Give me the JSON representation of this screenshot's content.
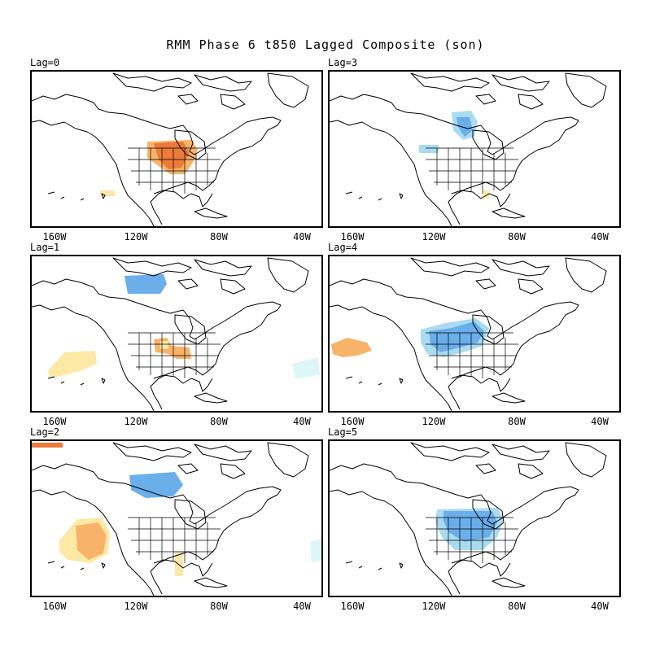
{
  "title": "RMM Phase 6 t850 Lagged Composite (son)",
  "colors": {
    "warm_light": "#fde9a6",
    "warm_mid": "#f7b469",
    "warm_strong": "#ec7a38",
    "cool_faint": "#dff6f8",
    "cool_light": "#a9dcf0",
    "cool_mid": "#6aaeea",
    "coast": "#000000",
    "borders": "#000000"
  },
  "longitude_ticks": [
    "160W",
    "120W",
    "80W",
    "40W"
  ],
  "panels": [
    {
      "label": "Lag=0",
      "anomaly": "warm",
      "region": "Central US / Great Plains"
    },
    {
      "label": "Lag=3",
      "anomaly": "cool",
      "region": "Northern Plains / Central Canada"
    },
    {
      "label": "Lag=1",
      "anomaly": "mixed",
      "region": "Central Canada (cool), Southern Plains (warm), NE Pacific (warm)"
    },
    {
      "label": "Lag=4",
      "anomaly": "mixed",
      "region": "Western & Central US (cool), NE Pacific (warm)"
    },
    {
      "label": "Lag=2",
      "anomaly": "mixed",
      "region": "Central Canada (cool), NE Pacific & Mexico (warm)"
    },
    {
      "label": "Lag=5",
      "anomaly": "cool",
      "region": "Central US"
    }
  ]
}
